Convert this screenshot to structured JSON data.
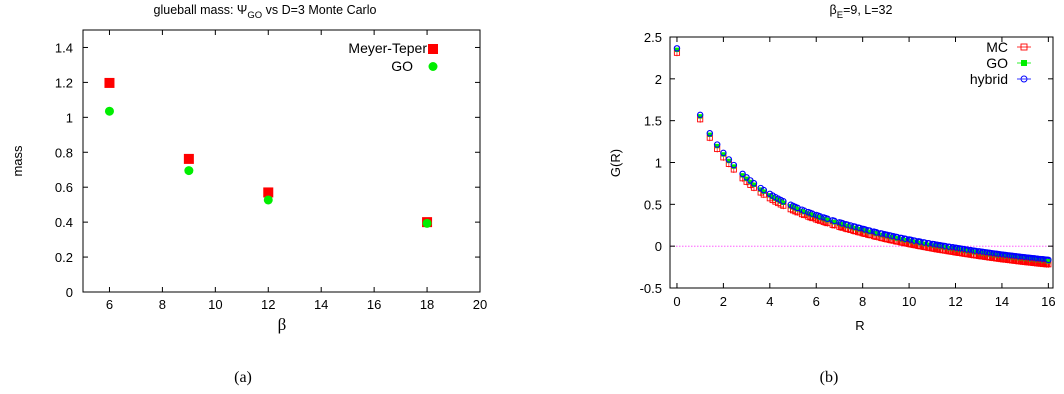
{
  "chart_data": [
    {
      "type": "scatter",
      "title": "glueball mass: Ψ",
      "title_sub": "GO",
      "title_rest": " vs D=3 Monte Carlo",
      "xlabel": "β",
      "ylabel": "mass",
      "xlim": [
        5,
        20
      ],
      "ylim": [
        0,
        1.5
      ],
      "x_ticks": [
        6,
        8,
        10,
        12,
        14,
        16,
        18,
        20
      ],
      "y_ticks": [
        0,
        0.2,
        0.4,
        0.6,
        0.8,
        1,
        1.2,
        1.4
      ],
      "grid": false,
      "legend_position": "top-right",
      "caption": "(a)",
      "series": [
        {
          "name": "Meyer-Teper",
          "color": "#ff0000",
          "marker": "square",
          "points": [
            [
              6,
              1.197
            ],
            [
              9,
              0.762
            ],
            [
              12,
              0.57
            ],
            [
              18,
              0.4
            ]
          ]
        },
        {
          "name": "GO",
          "color": "#00ee00",
          "marker": "circle",
          "points": [
            [
              6,
              1.035
            ],
            [
              9,
              0.695
            ],
            [
              12,
              0.527
            ],
            [
              18,
              0.393
            ]
          ]
        }
      ]
    },
    {
      "type": "scatter",
      "title": "β",
      "title_sub": "E",
      "title_rest": "=9, L=32",
      "xlabel": "R",
      "ylabel": "G(R)",
      "xlim": [
        -0.3,
        16.2
      ],
      "ylim": [
        -0.5,
        2.5
      ],
      "x_ticks": [
        0,
        2,
        4,
        6,
        8,
        10,
        12,
        14,
        16
      ],
      "y_ticks": [
        -0.5,
        0,
        0.5,
        1,
        1.5,
        2,
        2.5
      ],
      "grid": false,
      "legend_position": "top-right",
      "reference_line": {
        "y": 0,
        "color": "#ff44ff"
      },
      "caption": "(b)",
      "R_values": [
        0,
        1,
        1.414,
        1.732,
        2,
        2.236,
        2.449,
        2.828,
        3,
        3.162,
        3.317,
        3.606,
        3.742,
        4,
        4.123,
        4.243,
        4.359,
        4.472,
        4.583,
        4.899,
        5,
        5.099,
        5.196,
        5.385,
        5.477,
        5.657,
        5.745,
        5.831,
        6,
        6.083,
        6.164,
        6.325,
        6.403,
        6.481,
        6.708,
        6.782,
        7,
        7.071,
        7.141,
        7.28,
        7.348,
        7.483,
        7.616,
        7.681,
        7.81,
        7.874,
        8,
        8.062,
        8.124,
        8.246,
        8.307,
        8.485,
        8.544,
        8.602,
        8.775,
        8.832,
        8.944,
        9,
        9.055,
        9.165,
        9.22,
        9.327,
        9.434,
        9.487,
        9.644,
        9.695,
        9.798,
        9.849,
        10,
        10.05,
        10.1,
        10.198,
        10.247,
        10.392,
        10.44,
        10.488,
        10.63,
        10.677,
        10.817,
        10.863,
        11,
        11.045,
        11.091,
        11.18,
        11.225,
        11.314,
        11.358,
        11.446,
        11.533,
        11.576,
        11.705,
        11.747,
        11.874,
        11.916,
        12,
        12.042,
        12.083,
        12.166,
        12.207,
        12.288,
        12.369,
        12.41,
        12.49,
        12.53,
        12.649,
        12.689,
        12.767,
        12.806,
        12.884,
        13,
        13.038,
        13.077,
        13.153,
        13.191,
        13.266,
        13.342,
        13.379,
        13.454,
        13.491,
        13.565,
        13.638,
        13.675,
        13.748,
        13.784,
        13.856,
        13.928,
        14,
        14.036,
        14.071,
        14.142,
        14.177,
        14.248,
        14.318,
        14.353,
        14.422,
        14.457,
        14.526,
        14.595,
        14.629,
        14.697,
        14.731,
        14.799,
        14.866,
        14.9,
        14.967,
        15,
        15.067,
        15.133,
        15.166,
        15.232,
        15.264,
        15.33,
        15.395,
        15.427,
        15.492,
        15.524,
        15.588,
        15.652,
        15.684,
        15.748,
        15.78,
        15.843,
        15.906,
        15.937,
        16
      ],
      "G_values": [
        2.35,
        1.555,
        1.335,
        1.2,
        1.1,
        1.022,
        0.955,
        0.85,
        0.808,
        0.771,
        0.737,
        0.68,
        0.655,
        0.611,
        0.59,
        0.571,
        0.554,
        0.537,
        0.522,
        0.48,
        0.467,
        0.455,
        0.443,
        0.421,
        0.411,
        0.392,
        0.383,
        0.374,
        0.358,
        0.35,
        0.342,
        0.328,
        0.321,
        0.314,
        0.294,
        0.288,
        0.27,
        0.265,
        0.259,
        0.248,
        0.242,
        0.232,
        0.222,
        0.217,
        0.207,
        0.203,
        0.193,
        0.189,
        0.184,
        0.175,
        0.171,
        0.159,
        0.154,
        0.15,
        0.139,
        0.135,
        0.128,
        0.124,
        0.121,
        0.114,
        0.11,
        0.104,
        0.097,
        0.094,
        0.085,
        0.082,
        0.076,
        0.073,
        0.065,
        0.062,
        0.059,
        0.054,
        0.051,
        0.043,
        0.041,
        0.038,
        0.031,
        0.028,
        0.021,
        0.019,
        0.012,
        0.01,
        0.008,
        0.003,
        0.001,
        -0.003,
        -0.005,
        -0.009,
        -0.013,
        -0.015,
        -0.021,
        -0.023,
        -0.028,
        -0.03,
        -0.034,
        -0.036,
        -0.038,
        -0.041,
        -0.043,
        -0.046,
        -0.05,
        -0.052,
        -0.055,
        -0.057,
        -0.062,
        -0.064,
        -0.067,
        -0.069,
        -0.072,
        -0.077,
        -0.078,
        -0.08,
        -0.083,
        -0.084,
        -0.087,
        -0.09,
        -0.092,
        -0.095,
        -0.096,
        -0.099,
        -0.102,
        -0.103,
        -0.106,
        -0.107,
        -0.11,
        -0.113,
        -0.115,
        -0.117,
        -0.118,
        -0.12,
        -0.121,
        -0.124,
        -0.126,
        -0.127,
        -0.13,
        -0.131,
        -0.133,
        -0.136,
        -0.137,
        -0.139,
        -0.14,
        -0.143,
        -0.145,
        -0.146,
        -0.148,
        -0.149,
        -0.151,
        -0.153,
        -0.154,
        -0.156,
        -0.157,
        -0.159,
        -0.161,
        -0.162,
        -0.164,
        -0.165,
        -0.167,
        -0.169,
        -0.17,
        -0.171,
        -0.172,
        -0.174,
        -0.176,
        -0.176,
        -0.178
      ],
      "series": [
        {
          "name": "MC",
          "color": "#ff0000",
          "marker": "open-square"
        },
        {
          "name": "GO",
          "color": "#00ee00",
          "marker": "filled-square"
        },
        {
          "name": "hybrid",
          "color": "#0000ff",
          "marker": "open-circle"
        }
      ]
    }
  ]
}
